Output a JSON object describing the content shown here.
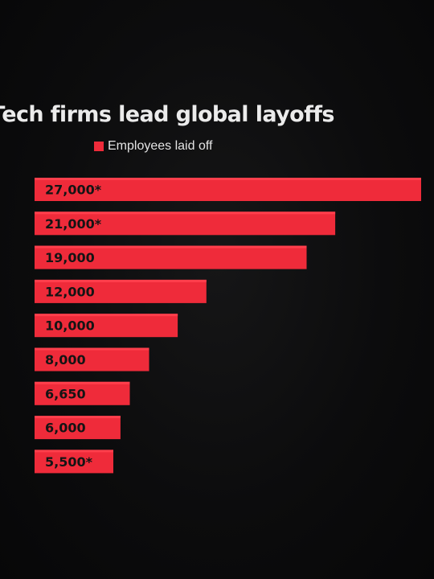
{
  "chart_data": {
    "type": "bar",
    "orientation": "horizontal",
    "title": "Tech firms lead global layoffs",
    "legend": [
      "Employees laid off"
    ],
    "values": [
      27000,
      21000,
      19000,
      12000,
      10000,
      8000,
      6650,
      6000,
      5500
    ],
    "labels": [
      "27,000*",
      "21,000*",
      "19,000",
      "12,000",
      "10,000",
      "8,000",
      "6,650",
      "6,000",
      "5,500*"
    ],
    "series": [
      {
        "name": "Employees laid off",
        "color": "#ef2b3a"
      }
    ]
  },
  "colors": {
    "bar": "#ef2b3a",
    "bar_highlight": "#ff3f4c",
    "background": "#0b0b0c",
    "title_text": "#ebebeb",
    "label_text": "#141414"
  }
}
